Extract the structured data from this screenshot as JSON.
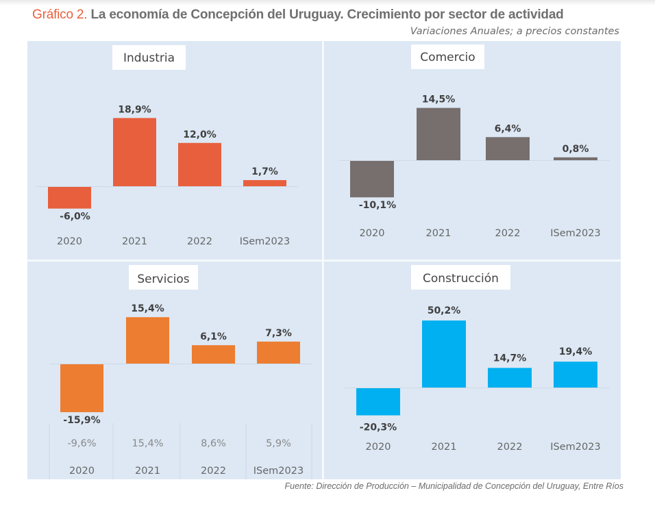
{
  "header": {
    "title_number": "Gráfico 2.",
    "title_text": "La economía de Concepción del Uruguay. Crecimiento por sector de actividad",
    "subtitle": "Variaciones Anuales; a precios constantes"
  },
  "footer": {
    "source": "Fuente: Dirección de Producción – Municipalidad de Concepción del Uruguay, Entre Ríos"
  },
  "colors": {
    "title_accent": "#e8603c",
    "panel_bg": "#dde8f4",
    "industria": "#e85f3d",
    "comercio": "#766f6d",
    "servicios": "#ed7d31",
    "construccion": "#00b0f0"
  },
  "chart_data": [
    {
      "type": "bar",
      "title": "Industria",
      "categories": [
        "2020",
        "2021",
        "2022",
        "ISem2023"
      ],
      "values": [
        -6.0,
        18.9,
        12.0,
        1.7
      ],
      "labels": [
        "-6,0%",
        "18,9%",
        "12,0%",
        "1,7%"
      ],
      "color": "#e85f3d",
      "xlabel": "",
      "ylabel": "",
      "grid": false
    },
    {
      "type": "bar",
      "title": "Comercio",
      "categories": [
        "2020",
        "2021",
        "2022",
        "ISem2023"
      ],
      "values": [
        -10.1,
        14.5,
        6.4,
        0.8
      ],
      "labels": [
        "-10,1%",
        "14,5%",
        "6,4%",
        "0,8%"
      ],
      "color": "#766f6d",
      "xlabel": "",
      "ylabel": "",
      "grid": false
    },
    {
      "type": "bar",
      "title": "Servicios",
      "categories": [
        "2020",
        "2021",
        "2022",
        "ISem2023"
      ],
      "values": [
        -15.9,
        15.4,
        6.1,
        7.3
      ],
      "labels": [
        "-15,9%",
        "15,4%",
        "6,1%",
        "7,3%"
      ],
      "table_row": [
        "-9,6%",
        "15,4%",
        "8,6%",
        "5,9%"
      ],
      "color": "#ed7d31",
      "xlabel": "",
      "ylabel": "",
      "grid": false
    },
    {
      "type": "bar",
      "title": "Construcción",
      "categories": [
        "2020",
        "2021",
        "2022",
        "ISem2023"
      ],
      "values": [
        -20.3,
        50.2,
        14.7,
        19.4
      ],
      "labels": [
        "-20,3%",
        "50,2%",
        "14,7%",
        "19,4%"
      ],
      "color": "#00b0f0",
      "xlabel": "",
      "ylabel": "",
      "grid": false
    }
  ]
}
